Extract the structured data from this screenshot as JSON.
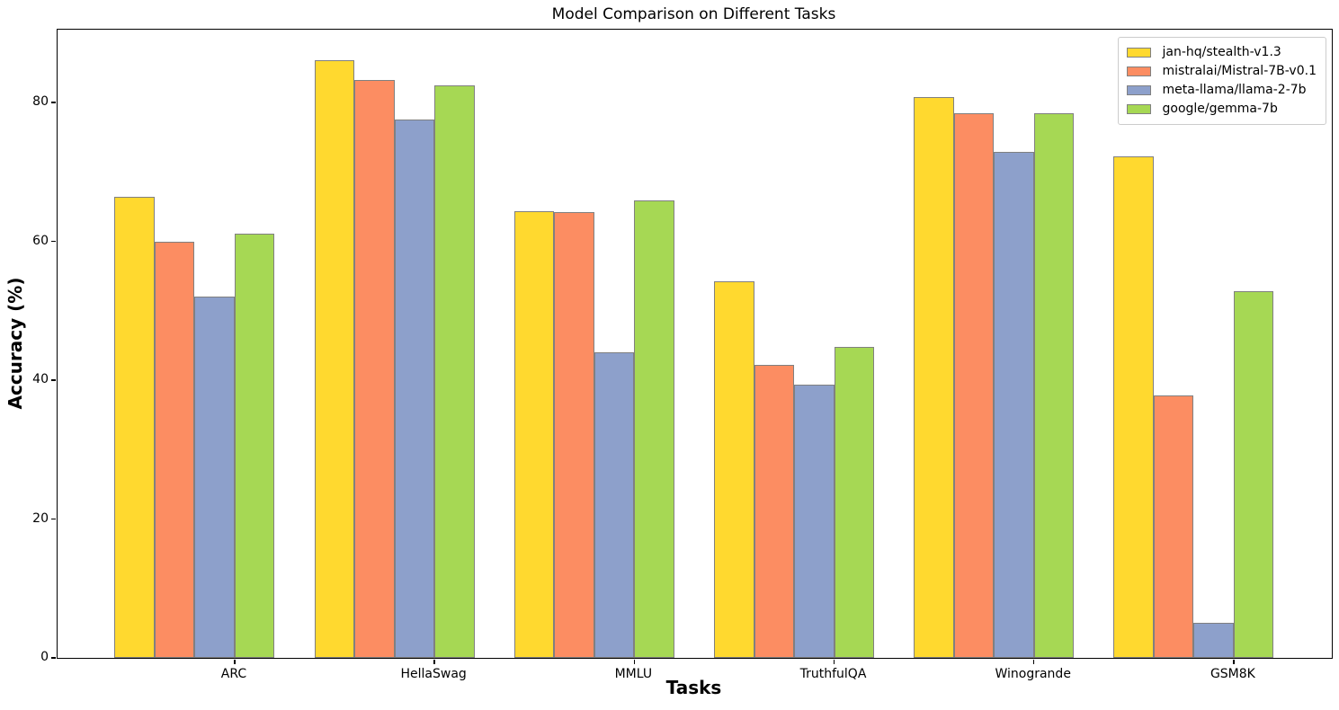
{
  "chart_data": {
    "type": "bar",
    "title": "Model Comparison on Different Tasks",
    "xlabel": "Tasks",
    "ylabel": "Accuracy (%)",
    "categories": [
      "ARC",
      "HellaSwag",
      "MMLU",
      "TruthfulQA",
      "Winogrande",
      "GSM8K"
    ],
    "series": [
      {
        "name": "jan-hq/stealth-v1.3",
        "color": "#FFD92F",
        "values": [
          66.4,
          86.1,
          64.4,
          54.3,
          80.8,
          72.2
        ]
      },
      {
        "name": "mistralai/Mistral-7B-v0.1",
        "color": "#FC8D62",
        "values": [
          60.0,
          83.3,
          64.2,
          42.2,
          78.4,
          37.8
        ]
      },
      {
        "name": "meta-llama/llama-2-7b",
        "color": "#8DA0CB",
        "values": [
          52.0,
          77.6,
          44.0,
          39.3,
          72.9,
          5.0
        ]
      },
      {
        "name": "google/gemma-7b",
        "color": "#A6D854",
        "values": [
          61.1,
          82.5,
          65.9,
          44.8,
          78.5,
          52.8
        ]
      }
    ],
    "yticks": [
      0,
      20,
      40,
      60,
      80
    ],
    "ylim": [
      0,
      90.5
    ],
    "bar_edge_color": "#808080",
    "axis_color": "#000000",
    "legend_position": "upper right",
    "grid": false
  }
}
